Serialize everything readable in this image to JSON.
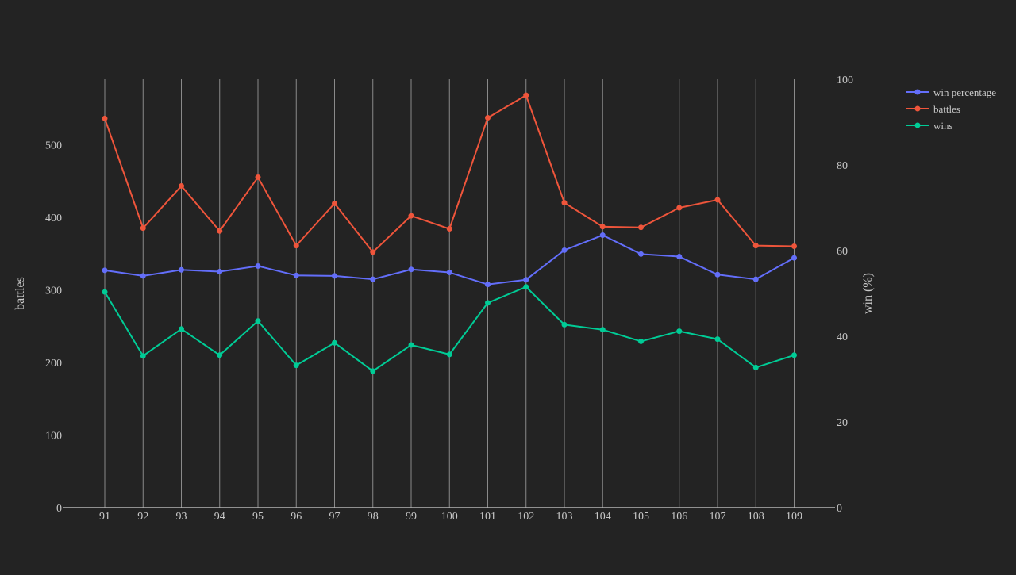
{
  "colors": {
    "background": "#232323",
    "grid": "#8a8a8a",
    "axis_line": "#b4b4b4",
    "text": "#c8c8c8"
  },
  "chart_data": {
    "type": "line",
    "title": "",
    "xlabel": "",
    "ylabel": "battles",
    "y2label": "win (%)",
    "x": [
      91,
      92,
      93,
      94,
      95,
      96,
      97,
      98,
      99,
      100,
      101,
      102,
      103,
      104,
      105,
      106,
      107,
      108,
      109
    ],
    "x_tick_labels": [
      "91",
      "92",
      "93",
      "94",
      "95",
      "96",
      "97",
      "98",
      "99",
      "100",
      "101",
      "102",
      "103",
      "104",
      "105",
      "106",
      "107",
      "108",
      "109"
    ],
    "ylim": [
      0,
      590
    ],
    "y_ticks": [
      0,
      100,
      200,
      300,
      400,
      500
    ],
    "y2lim": [
      0,
      100
    ],
    "y2_ticks": [
      0,
      20,
      40,
      60,
      80,
      100
    ],
    "grid": "vertical",
    "legend_position": "top-right",
    "series": [
      {
        "name": "win percentage",
        "axis": "y2",
        "color": "#636efa",
        "values": [
          55.4,
          54.1,
          55.5,
          55.1,
          56.4,
          54.2,
          54.1,
          53.3,
          55.6,
          54.9,
          52.1,
          53.2,
          60.1,
          63.6,
          59.2,
          58.6,
          54.4,
          53.3,
          58.3
        ]
      },
      {
        "name": "battles",
        "axis": "y",
        "color": "#ef553b",
        "values": [
          536,
          385,
          443,
          381,
          455,
          361,
          419,
          352,
          402,
          384,
          537,
          568,
          420,
          387,
          386,
          413,
          424,
          361,
          360
        ]
      },
      {
        "name": "wins",
        "axis": "y",
        "color": "#00cc96",
        "values": [
          297,
          209,
          246,
          210,
          257,
          196,
          227,
          188,
          224,
          211,
          282,
          304,
          252,
          245,
          229,
          243,
          232,
          193,
          210
        ]
      }
    ]
  }
}
